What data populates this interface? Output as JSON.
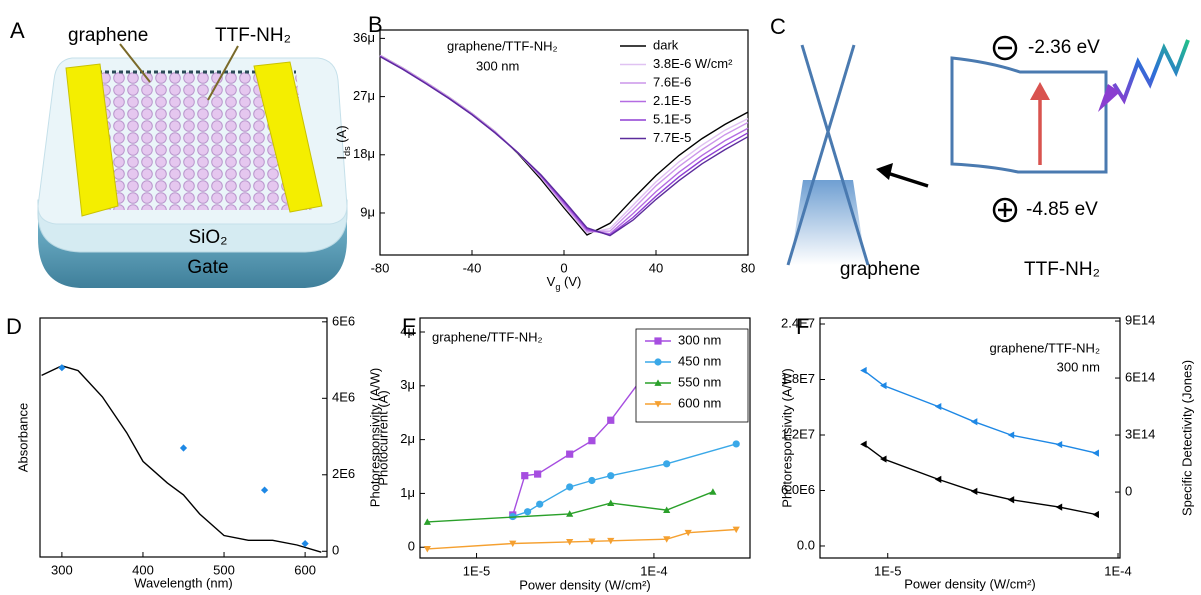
{
  "panel_labels": [
    "A",
    "B",
    "C",
    "D",
    "E",
    "F"
  ],
  "device": {
    "graphene": "graphene",
    "molecule": "TTF-NH₂",
    "dielectric": "SiO₂",
    "gate": "Gate"
  },
  "energy_diagram": {
    "lumo": "-2.36 eV",
    "homo": "-4.85 eV",
    "left": "graphene",
    "right": "TTF-NH₂"
  },
  "chart_data": [
    {
      "type": "line",
      "xlabel": [
        "V",
        "g",
        " (V)"
      ],
      "ylabel": [
        "I",
        "ds",
        " (A)"
      ],
      "annotations": [
        "graphene/TTF-NH₂",
        "300 nm"
      ],
      "x": [
        -80,
        -70,
        -60,
        -50,
        -40,
        -30,
        -20,
        -10,
        0,
        10,
        20,
        30,
        40,
        50,
        60,
        70,
        80
      ],
      "xlim": [
        -80,
        80
      ],
      "xticks": [
        -80,
        -40,
        0,
        40,
        80
      ],
      "ylim": [
        2.5e-06,
        3.73e-05
      ],
      "yticks": [
        {
          "value": 9e-06,
          "label": "9μ"
        },
        {
          "value": 1.8e-05,
          "label": "18μ"
        },
        {
          "value": 2.7e-05,
          "label": "27μ"
        },
        {
          "value": 3.6e-05,
          "label": "36μ"
        }
      ],
      "legend": "upper right",
      "series": [
        {
          "name": "dark",
          "color": "#000000",
          "values": [
            3.34e-05,
            3.14e-05,
            2.92e-05,
            2.69e-05,
            2.44e-05,
            2.16e-05,
            1.82e-05,
            1.42e-05,
            9.8e-06,
            5.6e-06,
            7.4e-06,
            1.12e-05,
            1.48e-05,
            1.79e-05,
            2.05e-05,
            2.27e-05,
            2.46e-05
          ]
        },
        {
          "name": "3.8E-6 W/cm²",
          "color": "#e0c2f2",
          "values": [
            3.34e-05,
            3.14e-05,
            2.92e-05,
            2.69e-05,
            2.44e-05,
            2.16e-05,
            1.83e-05,
            1.45e-05,
            1.01e-05,
            5.9e-06,
            6.6e-06,
            1.02e-05,
            1.38e-05,
            1.69e-05,
            1.95e-05,
            2.18e-05,
            2.36e-05
          ]
        },
        {
          "name": "7.6E-6",
          "color": "#cc96ea",
          "values": [
            3.33e-05,
            3.13e-05,
            2.91e-05,
            2.68e-05,
            2.43e-05,
            2.15e-05,
            1.83e-05,
            1.46e-05,
            1.03e-05,
            6.1e-06,
            6.2e-06,
            9.6e-06,
            1.32e-05,
            1.62e-05,
            1.88e-05,
            2.11e-05,
            2.3e-05
          ]
        },
        {
          "name": "2.1E-5",
          "color": "#b46ce2",
          "values": [
            3.33e-05,
            3.13e-05,
            2.91e-05,
            2.68e-05,
            2.43e-05,
            2.15e-05,
            1.83e-05,
            1.47e-05,
            1.05e-05,
            6.3e-06,
            5.8e-06,
            8.9e-06,
            1.23e-05,
            1.53e-05,
            1.79e-05,
            2.02e-05,
            2.21e-05
          ]
        },
        {
          "name": "5.1E-5",
          "color": "#8f3fd4",
          "values": [
            3.32e-05,
            3.12e-05,
            2.9e-05,
            2.67e-05,
            2.42e-05,
            2.14e-05,
            1.83e-05,
            1.48e-05,
            1.07e-05,
            6.5e-06,
            5.6e-06,
            8.3e-06,
            1.16e-05,
            1.46e-05,
            1.72e-05,
            1.94e-05,
            2.14e-05
          ]
        },
        {
          "name": "7.7E-5",
          "color": "#5c2c9c",
          "values": [
            3.32e-05,
            3.12e-05,
            2.9e-05,
            2.67e-05,
            2.42e-05,
            2.14e-05,
            1.83e-05,
            1.49e-05,
            1.09e-05,
            6.7e-06,
            5.5e-06,
            7.9e-06,
            1.11e-05,
            1.4e-05,
            1.66e-05,
            1.88e-05,
            2.08e-05
          ]
        }
      ]
    },
    {
      "type": "line",
      "xlabel": "Wavelength (nm)",
      "ylabel": "Absorbance",
      "y2label": "Photoresponsivity (A/W)",
      "y2color": "#1e88e5",
      "xlim": [
        273,
        627
      ],
      "xticks": [
        300,
        400,
        500,
        600
      ],
      "ylim": [
        0,
        1
      ],
      "yticks": [],
      "y2lim": [
        -150000.0,
        6100000.0
      ],
      "y2ticks": [
        0,
        {
          "value": 2000000.0,
          "label": "2E6"
        },
        {
          "value": 4000000.0,
          "label": "4E6"
        },
        {
          "value": 6000000.0,
          "label": "6E6"
        }
      ],
      "series": [
        {
          "color": "#000000",
          "x": [
            275,
            300,
            320,
            350,
            380,
            400,
            430,
            450,
            470,
            500,
            530,
            560,
            590,
            620
          ],
          "values": [
            0.76,
            0.8,
            0.78,
            0.67,
            0.52,
            0.4,
            0.31,
            0.26,
            0.18,
            0.09,
            0.07,
            0.07,
            0.05,
            0.02
          ]
        },
        {
          "color": "#1e88e5",
          "axis": "y2",
          "marker": "diamond",
          "line": false,
          "x": [
            300,
            450,
            550,
            600
          ],
          "values": [
            4800000.0,
            2700000.0,
            1600000.0,
            200000.0
          ]
        }
      ]
    },
    {
      "type": "line",
      "xscale": "log",
      "xlabel": "Power density (W/cm²)",
      "ylabel": "Photocurrent (A)",
      "annotations": [
        "graphene/TTF-NH₂"
      ],
      "xlim": [
        4.8e-06,
        0.000348
      ],
      "xticks": [
        {
          "value": 1e-05,
          "label": "1E-5"
        },
        {
          "value": 0.0001,
          "label": "1E-4"
        }
      ],
      "ylim": [
        -2e-07,
        4.26e-06
      ],
      "yticks": [
        0,
        {
          "value": 1e-06,
          "label": "1μ"
        },
        {
          "value": 2e-06,
          "label": "2μ"
        },
        {
          "value": 3e-06,
          "label": "3μ"
        },
        {
          "value": 4e-06,
          "label": "4μ"
        }
      ],
      "legend": "upper right",
      "series": [
        {
          "name": "300 nm",
          "color": "#a64ee0",
          "marker": "square",
          "x": [
            1.6e-05,
            1.87e-05,
            2.21e-05,
            3.35e-05,
            4.47e-05,
            5.71e-05,
            8.67e-05,
            0.000118
          ],
          "values": [
            6e-07,
            1.33e-06,
            1.36e-06,
            1.73e-06,
            1.98e-06,
            2.36e-06,
            3.16e-06,
            3.98e-06
          ]
        },
        {
          "name": "450 nm",
          "color": "#3aa8e8",
          "marker": "circle",
          "x": [
            1.6e-05,
            1.94e-05,
            2.27e-05,
            3.35e-05,
            4.47e-05,
            5.71e-05,
            0.000118,
            0.000291
          ],
          "values": [
            5.7e-07,
            6.6e-07,
            8e-07,
            1.12e-06,
            1.24e-06,
            1.33e-06,
            1.55e-06,
            1.92e-06
          ]
        },
        {
          "name": "550 nm",
          "color": "#2aa02a",
          "marker": "triangle-up",
          "x": [
            5.28e-06,
            3.35e-05,
            5.71e-05,
            0.000118,
            0.000215
          ],
          "values": [
            4.7e-07,
            6.2e-07,
            8.2e-07,
            6.9e-07,
            1.03e-06
          ]
        },
        {
          "name": "600 nm",
          "color": "#f5a030",
          "marker": "triangle-down",
          "x": [
            5.28e-06,
            1.6e-05,
            3.35e-05,
            4.47e-05,
            5.71e-05,
            0.000118,
            0.000156,
            0.000291
          ],
          "values": [
            -3e-08,
            7e-08,
            1e-07,
            1.1e-07,
            1.2e-07,
            1.5e-07,
            2.7e-07,
            3.3e-07
          ]
        }
      ]
    },
    {
      "type": "line",
      "xscale": "log",
      "xlabel": "Power density (W/cm²)",
      "ylabel": "Photoresponsivity (A/W)",
      "y2label": "Specific Detectivity (Jones)",
      "y2color": "#1e88e5",
      "annotations": [
        "graphene/TTF-NH₂",
        "300 nm"
      ],
      "xlim": [
        5.08e-06,
        0.000102
      ],
      "xticks": [
        {
          "value": 1e-05,
          "label": "1E-5"
        },
        {
          "value": 0.0001,
          "label": "1E-4"
        }
      ],
      "ylim": [
        -1300000.0,
        24650000.0
      ],
      "yticks": [
        {
          "value": 0,
          "label": "0.0"
        },
        {
          "value": 6000000.0,
          "label": "6.0E6"
        },
        {
          "value": 12000000.0,
          "label": "1.2E7"
        },
        {
          "value": 18000000.0,
          "label": "1.8E7"
        },
        {
          "value": 24000000.0,
          "label": "2.4E7"
        }
      ],
      "y2lim": [
        -347000000000000.0,
        916000000000000.0
      ],
      "y2ticks": [
        0,
        {
          "value": 300000000000000.0,
          "label": "3E14"
        },
        {
          "value": 600000000000000.0,
          "label": "6E14"
        },
        {
          "value": 900000000000000.0,
          "label": "9E14"
        }
      ],
      "series": [
        {
          "color": "#000000",
          "marker": "triangle-left",
          "x": [
            7.87e-06,
            9.6e-06,
            1.66e-05,
            2.38e-05,
            3.44e-05,
            5.56e-05,
            8.03e-05
          ],
          "values": [
            11000000.0,
            9400000.0,
            7200000.0,
            5900000.0,
            5000000.0,
            4200000.0,
            3400000.0
          ]
        },
        {
          "color": "#1e88e5",
          "marker": "triangle-left",
          "axis": "y2",
          "x": [
            7.87e-06,
            9.6e-06,
            1.66e-05,
            2.38e-05,
            3.44e-05,
            5.56e-05,
            8.03e-05
          ],
          "values": [
            640000000000000.0,
            560000000000000.0,
            450000000000000.0,
            370000000000000.0,
            300000000000000.0,
            250000000000000.0,
            205000000000000.0
          ]
        }
      ]
    }
  ]
}
